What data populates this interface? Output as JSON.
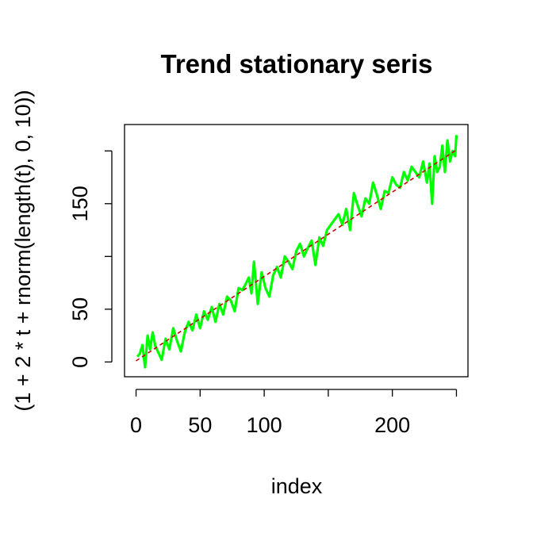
{
  "chart_data": {
    "type": "line",
    "title": "Trend stationary seris",
    "xlabel": "index",
    "ylabel": "(1 + 2 * t + rnorm(length(t), 0, 10))",
    "xlim": [
      -9,
      259
    ],
    "ylim": [
      -14,
      225
    ],
    "x_ticks": [
      0,
      50,
      100,
      150,
      200,
      250
    ],
    "x_tick_labels": [
      "0",
      "50",
      "100",
      "",
      "200",
      ""
    ],
    "y_ticks": [
      0,
      50,
      100,
      150,
      200
    ],
    "y_tick_labels": [
      "0",
      "50",
      "",
      "150",
      ""
    ],
    "grid": false,
    "colors": {
      "series": "#00ff00",
      "trend": "#cc0000"
    },
    "series": [
      {
        "style": "solid",
        "x": [
          1,
          3,
          5,
          7,
          9,
          11,
          13,
          15,
          17,
          20,
          23,
          26,
          29,
          32,
          35,
          38,
          41,
          44,
          47,
          50,
          53,
          56,
          59,
          62,
          65,
          68,
          71,
          74,
          77,
          80,
          83,
          86,
          88,
          90,
          92,
          95,
          98,
          101,
          104,
          107,
          110,
          113,
          116,
          119,
          122,
          125,
          128,
          131,
          134,
          137,
          140,
          143,
          146,
          149,
          152,
          155,
          158,
          161,
          164,
          167,
          170,
          173,
          176,
          179,
          182,
          185,
          188,
          191,
          194,
          197,
          200,
          203,
          206,
          209,
          212,
          215,
          218,
          221,
          224,
          227,
          229,
          231,
          233,
          235,
          237,
          239,
          241,
          243,
          245,
          247,
          249,
          250
        ],
        "values": [
          5,
          8,
          16,
          -5,
          25,
          12,
          28,
          15,
          10,
          2,
          22,
          12,
          32,
          20,
          10,
          28,
          38,
          30,
          45,
          32,
          48,
          40,
          52,
          38,
          55,
          45,
          62,
          58,
          48,
          70,
          68,
          75,
          80,
          65,
          95,
          55,
          85,
          70,
          62,
          82,
          90,
          80,
          100,
          95,
          88,
          105,
          112,
          100,
          108,
          115,
          92,
          118,
          110,
          125,
          130,
          135,
          140,
          130,
          145,
          125,
          160,
          148,
          138,
          155,
          150,
          170,
          158,
          145,
          162,
          160,
          175,
          168,
          165,
          180,
          172,
          185,
          180,
          175,
          190,
          170,
          188,
          150,
          195,
          180,
          185,
          205,
          180,
          210,
          190,
          200,
          195,
          215
        ]
      },
      {
        "style": "dashed",
        "x": [
          0,
          250
        ],
        "values": [
          1,
          201
        ]
      }
    ]
  }
}
